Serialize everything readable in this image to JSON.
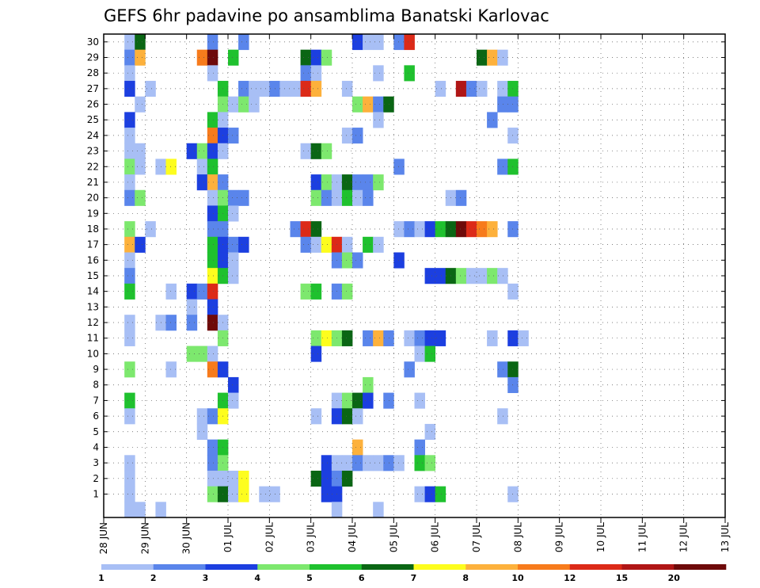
{
  "chart_data": {
    "type": "heatmap",
    "title": "GEFS 6hr padavine po ansamblima Banatski Karlovac",
    "y_range": [
      1,
      30
    ],
    "y_ticks": [
      1,
      2,
      3,
      4,
      5,
      6,
      7,
      8,
      9,
      10,
      11,
      12,
      13,
      14,
      15,
      16,
      17,
      18,
      19,
      20,
      21,
      22,
      23,
      24,
      25,
      26,
      27,
      28,
      29,
      30
    ],
    "x_ticks": [
      "28 JUN",
      "29 JUN",
      "30 JUN",
      "01 JUL",
      "02 JUL",
      "03 JUL",
      "04 JUL",
      "05 JUL",
      "06 JUL",
      "07 JUL",
      "08 JUL",
      "09 JUL",
      "10 JUL",
      "11 JUL",
      "12 JUL",
      "13 JUL"
    ],
    "grid": true,
    "colorbar": {
      "labels": [
        "1",
        "2",
        "3",
        "4",
        "5",
        "6",
        "7",
        "8",
        "10",
        "12",
        "15",
        "20"
      ],
      "colors": [
        "#a8bff5",
        "#5a85eb",
        "#1c3fe0",
        "#7de86e",
        "#1fc12e",
        "#0a6614",
        "#fdfd1e",
        "#fdb13c",
        "#f77b1c",
        "#dc2a18",
        "#b01616",
        "#6e0a0a"
      ]
    },
    "cells": [
      [
        2,
        30,
        0
      ],
      [
        3,
        30,
        5
      ],
      [
        10,
        30,
        1
      ],
      [
        13,
        30,
        1
      ],
      [
        24,
        30,
        2
      ],
      [
        25,
        30,
        0
      ],
      [
        26,
        30,
        0
      ],
      [
        28,
        30,
        1
      ],
      [
        29,
        30,
        9
      ],
      [
        2,
        29,
        1
      ],
      [
        3,
        29,
        7
      ],
      [
        9,
        29,
        8
      ],
      [
        10,
        29,
        11
      ],
      [
        12,
        29,
        4
      ],
      [
        19,
        29,
        5
      ],
      [
        20,
        29,
        2
      ],
      [
        21,
        29,
        3
      ],
      [
        36,
        29,
        5
      ],
      [
        37,
        29,
        7
      ],
      [
        38,
        29,
        0
      ],
      [
        2,
        28,
        0
      ],
      [
        10,
        28,
        0
      ],
      [
        19,
        28,
        1
      ],
      [
        20,
        28,
        0
      ],
      [
        26,
        28,
        0
      ],
      [
        29,
        28,
        4
      ],
      [
        2,
        27,
        2
      ],
      [
        4,
        27,
        0
      ],
      [
        11,
        27,
        4
      ],
      [
        13,
        27,
        1
      ],
      [
        14,
        27,
        0
      ],
      [
        15,
        27,
        0
      ],
      [
        16,
        27,
        1
      ],
      [
        17,
        27,
        0
      ],
      [
        18,
        27,
        0
      ],
      [
        19,
        27,
        9
      ],
      [
        20,
        27,
        7
      ],
      [
        23,
        27,
        0
      ],
      [
        32,
        27,
        0
      ],
      [
        34,
        27,
        10
      ],
      [
        35,
        27,
        1
      ],
      [
        36,
        27,
        0
      ],
      [
        38,
        27,
        0
      ],
      [
        39,
        27,
        4
      ],
      [
        3,
        26,
        0
      ],
      [
        11,
        26,
        3
      ],
      [
        12,
        26,
        0
      ],
      [
        13,
        26,
        3
      ],
      [
        14,
        26,
        0
      ],
      [
        24,
        26,
        3
      ],
      [
        25,
        26,
        7
      ],
      [
        26,
        26,
        1
      ],
      [
        27,
        26,
        5
      ],
      [
        38,
        26,
        1
      ],
      [
        39,
        26,
        1
      ],
      [
        2,
        25,
        2
      ],
      [
        10,
        25,
        4
      ],
      [
        11,
        25,
        0
      ],
      [
        26,
        25,
        0
      ],
      [
        37,
        25,
        1
      ],
      [
        2,
        24,
        0
      ],
      [
        10,
        24,
        8
      ],
      [
        11,
        24,
        2
      ],
      [
        12,
        24,
        1
      ],
      [
        23,
        24,
        0
      ],
      [
        24,
        24,
        1
      ],
      [
        39,
        24,
        0
      ],
      [
        2,
        23,
        0
      ],
      [
        3,
        23,
        0
      ],
      [
        8,
        23,
        2
      ],
      [
        9,
        23,
        3
      ],
      [
        10,
        23,
        2
      ],
      [
        11,
        23,
        0
      ],
      [
        19,
        23,
        0
      ],
      [
        20,
        23,
        5
      ],
      [
        21,
        23,
        3
      ],
      [
        2,
        22,
        3
      ],
      [
        3,
        22,
        0
      ],
      [
        5,
        22,
        0
      ],
      [
        6,
        22,
        6
      ],
      [
        9,
        22,
        0
      ],
      [
        10,
        22,
        4
      ],
      [
        28,
        22,
        1
      ],
      [
        38,
        22,
        1
      ],
      [
        39,
        22,
        4
      ],
      [
        2,
        21,
        0
      ],
      [
        9,
        21,
        2
      ],
      [
        10,
        21,
        7
      ],
      [
        11,
        21,
        1
      ],
      [
        20,
        21,
        2
      ],
      [
        21,
        21,
        3
      ],
      [
        22,
        21,
        0
      ],
      [
        23,
        21,
        5
      ],
      [
        24,
        21,
        1
      ],
      [
        25,
        21,
        1
      ],
      [
        26,
        21,
        3
      ],
      [
        2,
        20,
        1
      ],
      [
        3,
        20,
        3
      ],
      [
        10,
        20,
        0
      ],
      [
        11,
        20,
        3
      ],
      [
        12,
        20,
        1
      ],
      [
        13,
        20,
        1
      ],
      [
        20,
        20,
        3
      ],
      [
        21,
        20,
        1
      ],
      [
        22,
        20,
        0
      ],
      [
        23,
        20,
        4
      ],
      [
        24,
        20,
        0
      ],
      [
        25,
        20,
        1
      ],
      [
        33,
        20,
        0
      ],
      [
        34,
        20,
        1
      ],
      [
        10,
        19,
        2
      ],
      [
        11,
        19,
        4
      ],
      [
        12,
        19,
        0
      ],
      [
        2,
        18,
        3
      ],
      [
        4,
        18,
        0
      ],
      [
        10,
        18,
        1
      ],
      [
        11,
        18,
        1
      ],
      [
        18,
        18,
        1
      ],
      [
        19,
        18,
        9
      ],
      [
        20,
        18,
        5
      ],
      [
        28,
        18,
        0
      ],
      [
        29,
        18,
        1
      ],
      [
        30,
        18,
        0
      ],
      [
        31,
        18,
        2
      ],
      [
        32,
        18,
        4
      ],
      [
        33,
        18,
        5
      ],
      [
        34,
        18,
        11
      ],
      [
        35,
        18,
        9
      ],
      [
        36,
        18,
        8
      ],
      [
        37,
        18,
        7
      ],
      [
        39,
        18,
        1
      ],
      [
        2,
        17,
        7
      ],
      [
        3,
        17,
        2
      ],
      [
        10,
        17,
        4
      ],
      [
        11,
        17,
        2
      ],
      [
        12,
        17,
        1
      ],
      [
        13,
        17,
        2
      ],
      [
        19,
        17,
        1
      ],
      [
        20,
        17,
        0
      ],
      [
        21,
        17,
        6
      ],
      [
        22,
        17,
        9
      ],
      [
        23,
        17,
        0
      ],
      [
        25,
        17,
        4
      ],
      [
        26,
        17,
        0
      ],
      [
        2,
        16,
        0
      ],
      [
        10,
        16,
        4
      ],
      [
        11,
        16,
        2
      ],
      [
        12,
        16,
        0
      ],
      [
        22,
        16,
        1
      ],
      [
        23,
        16,
        3
      ],
      [
        24,
        16,
        1
      ],
      [
        28,
        16,
        2
      ],
      [
        2,
        15,
        1
      ],
      [
        10,
        15,
        6
      ],
      [
        11,
        15,
        4
      ],
      [
        12,
        15,
        0
      ],
      [
        31,
        15,
        2
      ],
      [
        32,
        15,
        2
      ],
      [
        33,
        15,
        5
      ],
      [
        34,
        15,
        3
      ],
      [
        35,
        15,
        0
      ],
      [
        36,
        15,
        0
      ],
      [
        37,
        15,
        3
      ],
      [
        38,
        15,
        0
      ],
      [
        2,
        14,
        4
      ],
      [
        6,
        14,
        0
      ],
      [
        8,
        14,
        2
      ],
      [
        9,
        14,
        1
      ],
      [
        10,
        14,
        9
      ],
      [
        19,
        14,
        3
      ],
      [
        20,
        14,
        4
      ],
      [
        22,
        14,
        1
      ],
      [
        23,
        14,
        3
      ],
      [
        39,
        14,
        0
      ],
      [
        8,
        13,
        0
      ],
      [
        10,
        13,
        2
      ],
      [
        2,
        12,
        0
      ],
      [
        5,
        12,
        0
      ],
      [
        6,
        12,
        1
      ],
      [
        8,
        12,
        1
      ],
      [
        10,
        12,
        11
      ],
      [
        11,
        12,
        0
      ],
      [
        2,
        11,
        0
      ],
      [
        11,
        11,
        3
      ],
      [
        20,
        11,
        3
      ],
      [
        21,
        11,
        6
      ],
      [
        22,
        11,
        3
      ],
      [
        23,
        11,
        5
      ],
      [
        25,
        11,
        1
      ],
      [
        26,
        11,
        7
      ],
      [
        27,
        11,
        1
      ],
      [
        29,
        11,
        0
      ],
      [
        30,
        11,
        1
      ],
      [
        31,
        11,
        2
      ],
      [
        32,
        11,
        2
      ],
      [
        37,
        11,
        0
      ],
      [
        39,
        11,
        2
      ],
      [
        40,
        11,
        0
      ],
      [
        8,
        10,
        3
      ],
      [
        9,
        10,
        3
      ],
      [
        10,
        10,
        0
      ],
      [
        20,
        10,
        2
      ],
      [
        30,
        10,
        0
      ],
      [
        31,
        10,
        4
      ],
      [
        2,
        9,
        3
      ],
      [
        6,
        9,
        0
      ],
      [
        10,
        9,
        8
      ],
      [
        11,
        9,
        2
      ],
      [
        29,
        9,
        1
      ],
      [
        38,
        9,
        1
      ],
      [
        39,
        9,
        5
      ],
      [
        12,
        8,
        2
      ],
      [
        25,
        8,
        3
      ],
      [
        39,
        8,
        1
      ],
      [
        2,
        7,
        4
      ],
      [
        11,
        7,
        4
      ],
      [
        12,
        7,
        0
      ],
      [
        22,
        7,
        0
      ],
      [
        23,
        7,
        3
      ],
      [
        24,
        7,
        5
      ],
      [
        25,
        7,
        2
      ],
      [
        27,
        7,
        1
      ],
      [
        30,
        7,
        0
      ],
      [
        2,
        6,
        0
      ],
      [
        9,
        6,
        0
      ],
      [
        10,
        6,
        1
      ],
      [
        11,
        6,
        6
      ],
      [
        20,
        6,
        0
      ],
      [
        22,
        6,
        2
      ],
      [
        23,
        6,
        5
      ],
      [
        24,
        6,
        0
      ],
      [
        38,
        6,
        0
      ],
      [
        9,
        5,
        0
      ],
      [
        31,
        5,
        0
      ],
      [
        10,
        4,
        1
      ],
      [
        11,
        4,
        4
      ],
      [
        24,
        4,
        7
      ],
      [
        30,
        4,
        1
      ],
      [
        2,
        3,
        0
      ],
      [
        10,
        3,
        1
      ],
      [
        11,
        3,
        3
      ],
      [
        21,
        3,
        2
      ],
      [
        22,
        3,
        0
      ],
      [
        23,
        3,
        0
      ],
      [
        24,
        3,
        1
      ],
      [
        25,
        3,
        0
      ],
      [
        26,
        3,
        0
      ],
      [
        27,
        3,
        1
      ],
      [
        28,
        3,
        0
      ],
      [
        30,
        3,
        4
      ],
      [
        31,
        3,
        3
      ],
      [
        2,
        2,
        0
      ],
      [
        10,
        2,
        0
      ],
      [
        11,
        2,
        0
      ],
      [
        12,
        2,
        0
      ],
      [
        13,
        2,
        6
      ],
      [
        20,
        2,
        5
      ],
      [
        21,
        2,
        2
      ],
      [
        22,
        2,
        1
      ],
      [
        23,
        2,
        5
      ],
      [
        2,
        1,
        0
      ],
      [
        10,
        1,
        3
      ],
      [
        11,
        1,
        5
      ],
      [
        12,
        1,
        0
      ],
      [
        13,
        1,
        6
      ],
      [
        15,
        1,
        0
      ],
      [
        16,
        1,
        0
      ],
      [
        21,
        1,
        2
      ],
      [
        22,
        1,
        2
      ],
      [
        30,
        1,
        0
      ],
      [
        31,
        1,
        2
      ],
      [
        32,
        1,
        4
      ],
      [
        39,
        1,
        0
      ],
      [
        2,
        0,
        0
      ],
      [
        3,
        0,
        0
      ],
      [
        5,
        0,
        0
      ],
      [
        22,
        0,
        0
      ],
      [
        26,
        0,
        0
      ]
    ]
  }
}
